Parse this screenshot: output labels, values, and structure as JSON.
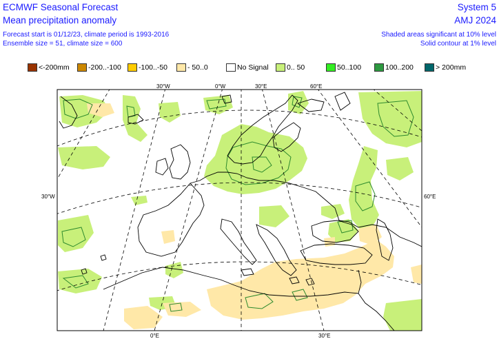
{
  "header": {
    "title_line1": "ECMWF Seasonal Forecast",
    "title_line2": "Mean precipitation anomaly",
    "info_line1": "Forecast start is 01/12/23, climate period is 1993-2016",
    "info_line2": "Ensemble size = 51, climate size = 600",
    "system": "System 5",
    "period": "AMJ 2024",
    "note_line1": "Shaded areas significant at 10% level",
    "note_line2": "Solid contour at 1% level"
  },
  "legend": [
    {
      "label": "<-200mm",
      "color": "#993300"
    },
    {
      "label": "-200..-100",
      "color": "#cc8800"
    },
    {
      "label": "-100..-50",
      "color": "#ffcc00"
    },
    {
      "label": "- 50..0",
      "color": "#ffe8a8"
    },
    {
      "label": "No Signal",
      "color": "#ffffff"
    },
    {
      "label": "0.. 50",
      "color": "#c8f07a"
    },
    {
      "label": "50..100",
      "color": "#33ee22"
    },
    {
      "label": "100..200",
      "color": "#2d9940"
    },
    {
      "label": "> 200mm",
      "color": "#00666a"
    }
  ],
  "map": {
    "labels": {
      "lon_top_30w": "30°W",
      "lon_top_0": "0°W",
      "lon_top_30e": "30°E",
      "lon_top_60e": "60°E",
      "lon_bottom_0": "0°E",
      "lon_bottom_30e": "30°E",
      "left_30w": "30°W",
      "right_60e": "60°E"
    },
    "colors": {
      "wet_shade": "#c8f07a",
      "dry_shade": "#ffe8a8",
      "contour": "#2d8a2d",
      "coast": "#000000",
      "grid": "#000000"
    }
  }
}
